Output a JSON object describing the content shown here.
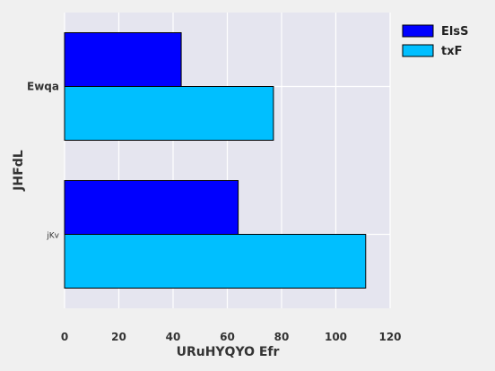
{
  "chart_data": {
    "type": "bar",
    "orientation": "horizontal",
    "categories": [
      "Ewqa",
      "jKv"
    ],
    "series": [
      {
        "name": "ElsS",
        "color": "#0000ff",
        "values": [
          43,
          64
        ]
      },
      {
        "name": "txF",
        "color": "#00bfff",
        "values": [
          77,
          111
        ]
      }
    ],
    "xlabel": "URuHYQYO  Efr",
    "ylabel": "JHFdL",
    "xlim": [
      0,
      120
    ],
    "xticks": [
      "0",
      "20",
      "40",
      "60",
      "80",
      "100",
      "120"
    ],
    "grid": true,
    "legend_position": "top-right"
  }
}
